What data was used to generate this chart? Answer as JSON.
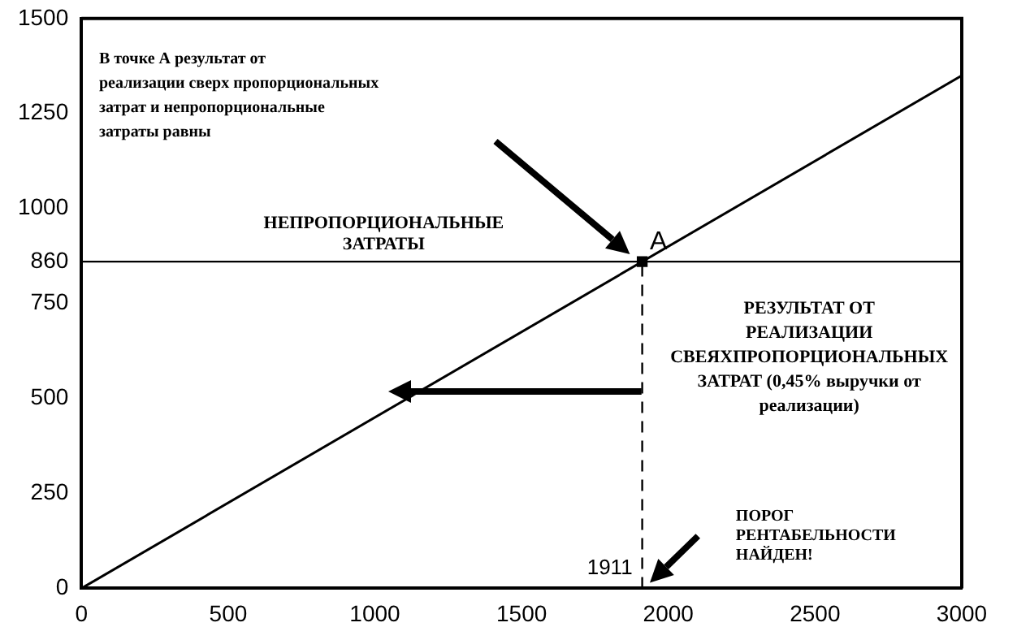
{
  "chart_data": {
    "type": "line",
    "series": [
      {
        "x": [
          0,
          3000
        ],
        "values": [
          0,
          1350
        ],
        "color": "#000000"
      },
      {
        "type": "scatter",
        "x": [
          1911
        ],
        "values": [
          860
        ],
        "color": "#000000",
        "marker": "square"
      }
    ],
    "xlim": [
      0,
      3000
    ],
    "xticks": [
      0,
      500,
      1000,
      1500,
      2000,
      2500,
      3000
    ],
    "ylim": [
      0,
      1500
    ],
    "yticks": [
      0,
      250,
      500,
      750,
      860,
      1000,
      1250,
      1500
    ],
    "grid": false,
    "legend": false,
    "marker": "none",
    "line_style": "solid",
    "ref_lines": [
      {
        "axis": "y",
        "value": 860,
        "label": "НЕПРОПОРЦИОНАЛЬНЫЕ\nЗАТРАТЫ",
        "color": "#000000",
        "line_style": "solid"
      },
      {
        "axis": "x",
        "value": 1911,
        "label": "1911",
        "color": "#000000",
        "line_style": "dashed"
      }
    ],
    "annotations": [
      "В точке А результат от\nреализации сверх пропорциональных\nзатрат и непропорциональные\nзатраты равны",
      {
        "text": "A",
        "x": 1911,
        "y": 860
      },
      "РЕЗУЛЬТАТ ОТ\nРЕАЛИЗАЦИИ\nСВЕЯХПРОПОРЦИОНАЛЬНЫХ\nЗАТРАТ (0,45% выручки от\nреализации)",
      "ПОРОГ\nРЕНТАБЕЛЬНОСТИ\nНАЙДЕН!"
    ]
  }
}
